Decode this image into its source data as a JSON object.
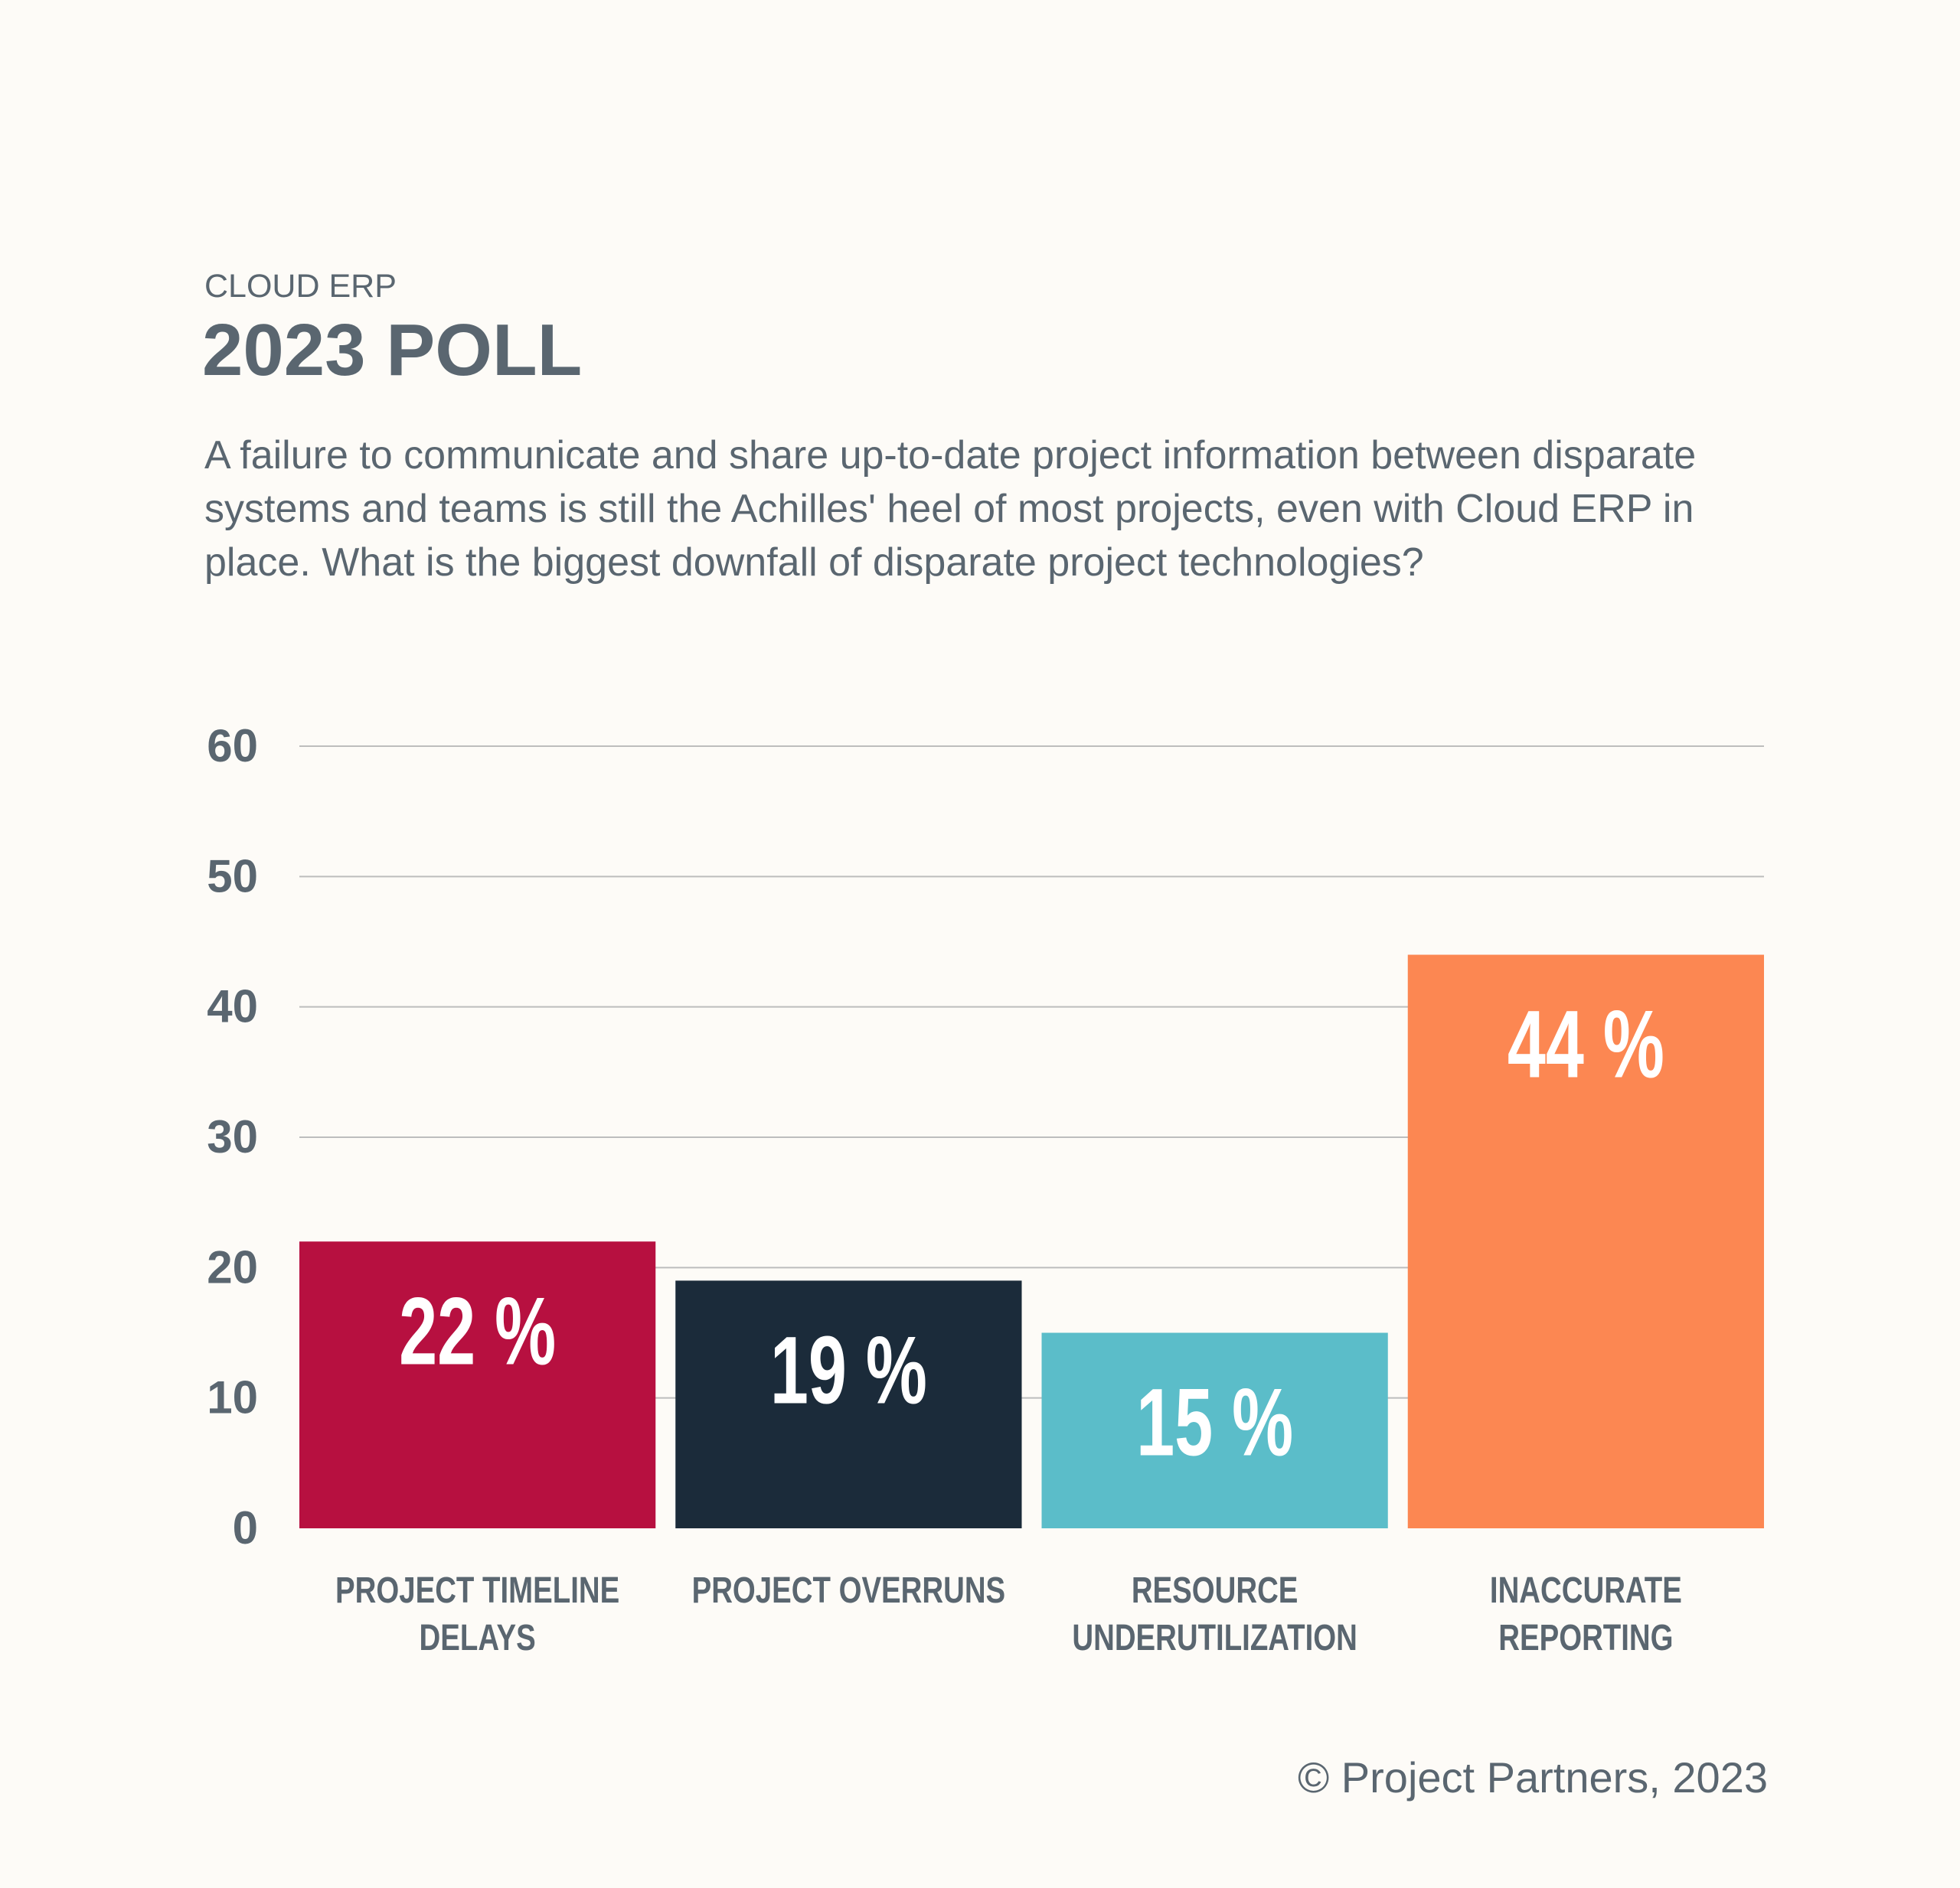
{
  "chart_data": {
    "type": "bar",
    "kicker": "CLOUD ERP",
    "title": "2023 POLL",
    "subtitle": "A failure to communicate and share up-to-date project information between disparate systems and teams is still the Achilles' heel of most projects, even with Cloud ERP in place. What is the biggest downfall of disparate project technologies?",
    "categories": [
      "PROJECT TIMELINE DELAYS",
      "PROJECT OVERRUNS",
      "RESOURCE UNDERUTILIZATION",
      "INACCURATE REPORTING"
    ],
    "values": [
      22,
      19,
      15,
      44
    ],
    "value_labels": [
      "22 %",
      "19 %",
      "15 %",
      "44 %"
    ],
    "colors": [
      "#b71040",
      "#1b2b3a",
      "#5bbdc9",
      "#fc8752"
    ],
    "ylim": [
      0,
      60
    ],
    "yticks": [
      0,
      10,
      20,
      30,
      40,
      50,
      60
    ],
    "grid": true,
    "footer": "© Project Partners, 2023"
  }
}
